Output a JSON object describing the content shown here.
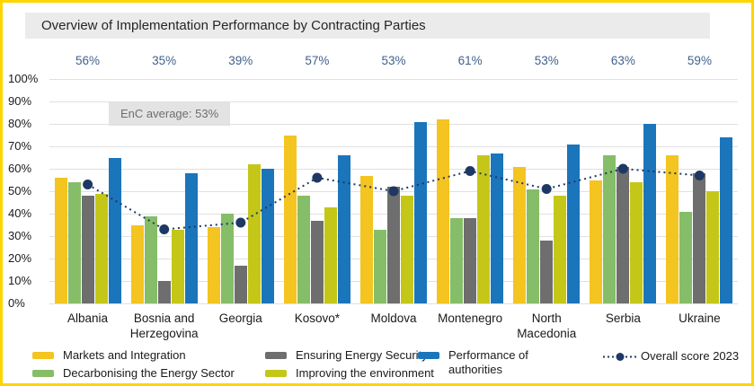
{
  "frame": {
    "border_color": "#FFD500"
  },
  "title": "Overview of Implementation Performance by Contracting Parties",
  "enc_average_label": "EnC average: 53%",
  "chart_data": {
    "type": "bar",
    "title": "Overview of Implementation Performance by Contracting Parties",
    "categories": [
      "Albania",
      "Bosnia and Herzegovina",
      "Georgia",
      "Kosovo*",
      "Moldova",
      "Montenegro",
      "North Macedonia",
      "Serbia",
      "Ukraine"
    ],
    "overall_labels": [
      "56%",
      "35%",
      "39%",
      "57%",
      "53%",
      "61%",
      "53%",
      "63%",
      "59%"
    ],
    "series": [
      {
        "name": "Markets and Integration",
        "color": "#F4C420",
        "values": [
          56,
          35,
          34,
          75,
          57,
          82,
          61,
          55,
          66
        ]
      },
      {
        "name": "Decarbonising the Energy Sector",
        "color": "#86BD68",
        "values": [
          54,
          39,
          40,
          48,
          33,
          38,
          51,
          66,
          41
        ]
      },
      {
        "name": "Ensuring Energy Security",
        "color": "#6E6E6E",
        "values": [
          48,
          10,
          17,
          37,
          52,
          38,
          28,
          61,
          58
        ]
      },
      {
        "name": "Improving the environment",
        "color": "#C4C718",
        "values": [
          49,
          33,
          62,
          43,
          48,
          66,
          48,
          54,
          50
        ]
      },
      {
        "name": "Performance of authorities",
        "color": "#1B75BB",
        "values": [
          65,
          58,
          60,
          66,
          81,
          67,
          71,
          80,
          74
        ]
      }
    ],
    "line_series": {
      "name": "Overall score 2023",
      "color": "#1E3864",
      "values": [
        53,
        33,
        36,
        56,
        50,
        59,
        51,
        60,
        57
      ]
    },
    "annotation": "EnC average: 53%",
    "ylim": [
      0,
      100
    ],
    "yticks": [
      "100%",
      "90%",
      "80%",
      "70%",
      "60%",
      "50%",
      "40%",
      "30%",
      "20%",
      "10%",
      "0%"
    ],
    "grid": true,
    "legend_position": "bottom",
    "colors": {
      "overall_label_text": "#40618E",
      "gridline": "#E0E0E0",
      "title_bar_bg": "#EBEBEB",
      "annotation_bg": "#E3E3E3",
      "annotation_text": "#6E6E6E"
    }
  }
}
